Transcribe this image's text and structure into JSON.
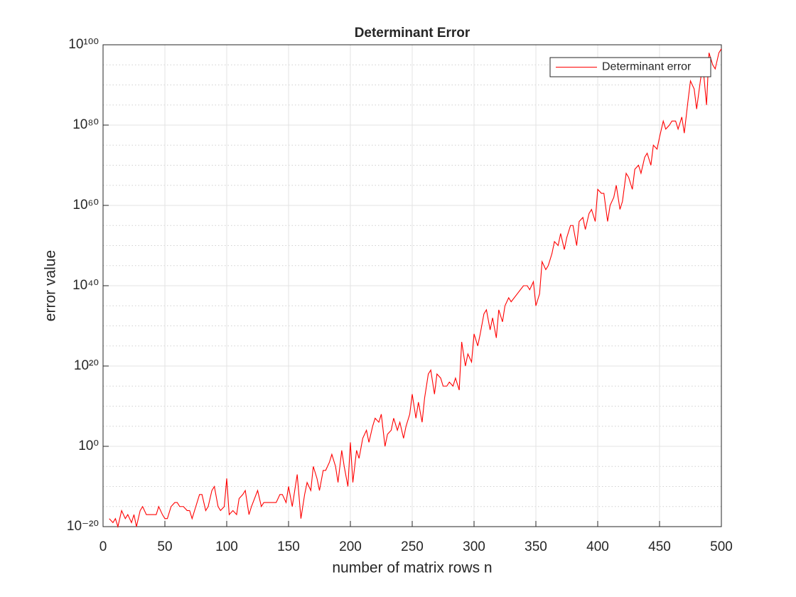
{
  "chart_data": {
    "type": "line",
    "title": "Determinant Error",
    "x_label": "number of matrix rows n",
    "y_label": "error value",
    "log_y": true,
    "grid": true,
    "minor_grid": true,
    "legend_position": "upper right",
    "xlim": [
      0,
      500
    ],
    "xticks": [
      0,
      50,
      100,
      150,
      200,
      250,
      300,
      350,
      400,
      450,
      500
    ],
    "ylim": [
      1e-20,
      1e+100
    ],
    "yticks": [
      {
        "value": 1e-20,
        "label": "10⁻²⁰"
      },
      {
        "value": 1,
        "label": "10⁰"
      },
      {
        "value": 1e+20,
        "label": "10²⁰"
      },
      {
        "value": 1e+40,
        "label": "10⁴⁰"
      },
      {
        "value": 1e+60,
        "label": "10⁶⁰"
      },
      {
        "value": 1e+80,
        "label": "10⁸⁰"
      },
      {
        "value": 1e+100,
        "label": "10¹⁰⁰"
      }
    ],
    "yminorticks": [
      1e-15,
      1e-10,
      1e-05,
      100000.0,
      10000000000.0,
      1000000000000000.0,
      1e+25,
      1e+30,
      1e+35,
      1e+45,
      1e+50,
      1e+55,
      1e+65,
      1e+70,
      1e+75,
      1e+85,
      1e+90,
      1e+95
    ],
    "x": [
      5,
      8,
      10,
      12,
      15,
      18,
      20,
      23,
      25,
      27,
      30,
      32,
      35,
      40,
      43,
      45,
      48,
      50,
      52,
      55,
      58,
      60,
      62,
      65,
      68,
      70,
      72,
      75,
      78,
      80,
      83,
      85,
      88,
      90,
      93,
      95,
      98,
      100,
      102,
      105,
      108,
      110,
      113,
      115,
      118,
      120,
      125,
      128,
      130,
      135,
      140,
      143,
      145,
      148,
      150,
      153,
      155,
      157,
      160,
      163,
      165,
      168,
      170,
      173,
      175,
      178,
      180,
      183,
      185,
      188,
      190,
      193,
      195,
      198,
      200,
      202,
      205,
      207,
      210,
      213,
      215,
      218,
      220,
      223,
      225,
      228,
      230,
      233,
      235,
      238,
      240,
      243,
      245,
      248,
      250,
      253,
      255,
      258,
      260,
      263,
      265,
      268,
      270,
      273,
      275,
      278,
      280,
      283,
      285,
      288,
      290,
      293,
      295,
      298,
      300,
      303,
      305,
      308,
      310,
      313,
      315,
      318,
      320,
      323,
      325,
      328,
      330,
      335,
      340,
      343,
      345,
      348,
      350,
      353,
      355,
      358,
      360,
      363,
      365,
      368,
      370,
      373,
      375,
      378,
      380,
      383,
      385,
      388,
      390,
      393,
      395,
      398,
      400,
      403,
      405,
      408,
      410,
      413,
      415,
      418,
      420,
      423,
      425,
      428,
      430,
      433,
      435,
      438,
      440,
      443,
      445,
      448,
      450,
      453,
      455,
      458,
      460,
      463,
      465,
      468,
      470,
      473,
      475,
      478,
      480,
      483,
      485,
      488,
      490,
      493,
      495,
      498,
      500
    ],
    "series": [
      {
        "name": "Determinant error",
        "color": "#ff0000",
        "values": [
          1e-18,
          1e-19,
          1e-18,
          1e-20,
          1e-16,
          1e-18,
          1e-17,
          1e-19,
          1e-17,
          1e-20,
          1e-16,
          1e-15,
          1e-17,
          1e-17,
          1e-17,
          1e-15,
          1e-17,
          1e-18,
          1e-18,
          1e-15,
          1e-14,
          1e-14,
          1e-15,
          1e-15,
          1e-16,
          1e-16,
          1e-18,
          1e-15,
          1e-12,
          1e-12,
          1e-16,
          1e-15,
          1e-11,
          1e-10,
          1e-15,
          1e-16,
          1e-15,
          1e-08,
          1e-17,
          1e-16,
          1e-17,
          1e-13,
          1e-12,
          1e-11,
          1e-17,
          1e-15,
          1e-11,
          1e-15,
          1e-14,
          1e-14,
          1e-14,
          1e-12,
          1e-12,
          1e-14,
          1e-10,
          1e-15,
          1e-11,
          1e-07,
          1e-18,
          1e-12,
          1e-09,
          1e-11,
          1e-05,
          1e-08,
          1e-11,
          1e-06,
          1e-06,
          0.0001,
          0.01,
          1e-05,
          1e-09,
          0.1,
          1e-05,
          1e-10,
          10,
          1e-09,
          0.1,
          0.001,
          100.0,
          10000.0,
          10,
          100000.0,
          10000000.0,
          1000000.0,
          100000000.0,
          1,
          1000.0,
          10000.0,
          10000000.0,
          10000.0,
          1000000.0,
          100.0,
          100000.0,
          100000000.0,
          10000000000000.0,
          10000000.0,
          100000000000.0,
          1000000.0,
          1000000000000.0,
          1e+18,
          1e+19,
          10000000000000.0,
          1e+18,
          1e+17,
          1000000000000000.0,
          1000000000000000.0,
          1e+16,
          1000000000000000.0,
          1e+17,
          100000000000000.0,
          1e+26,
          1e+20,
          1e+23,
          1e+21,
          1e+28,
          1e+25,
          1e+28,
          1e+33,
          1e+34,
          1e+29,
          1e+32,
          1e+27,
          1e+34,
          1e+31,
          1e+35,
          1e+37,
          1e+36,
          1e+38,
          1e+40,
          1e+40,
          1e+39,
          1e+41,
          1e+35,
          1e+38,
          1e+46,
          1e+44,
          1e+45,
          1e+48,
          1e+51,
          1e+50,
          1e+53,
          1e+49,
          1e+52,
          1e+55,
          1e+55,
          1e+50,
          1e+56,
          1e+57,
          1e+54,
          1e+58,
          1e+59,
          1e+56,
          1e+64,
          1e+63,
          1e+63,
          1e+56,
          1e+60,
          1e+62,
          1e+65,
          1e+59,
          1e+61,
          1e+68,
          1e+67,
          1e+64,
          1e+69,
          1e+70,
          1e+68,
          1e+72,
          1e+73,
          1e+70,
          1e+75,
          1e+74,
          1e+77,
          1e+81,
          1e+79,
          1e+80,
          1e+81,
          1e+81,
          1e+79,
          1e+82,
          1e+78,
          1e+86,
          1e+91,
          1e+89,
          1e+84,
          1e+91,
          1e+95,
          1e+85,
          1e+98,
          1e+95,
          1e+94,
          1e+98,
          1e+99
        ]
      }
    ]
  }
}
